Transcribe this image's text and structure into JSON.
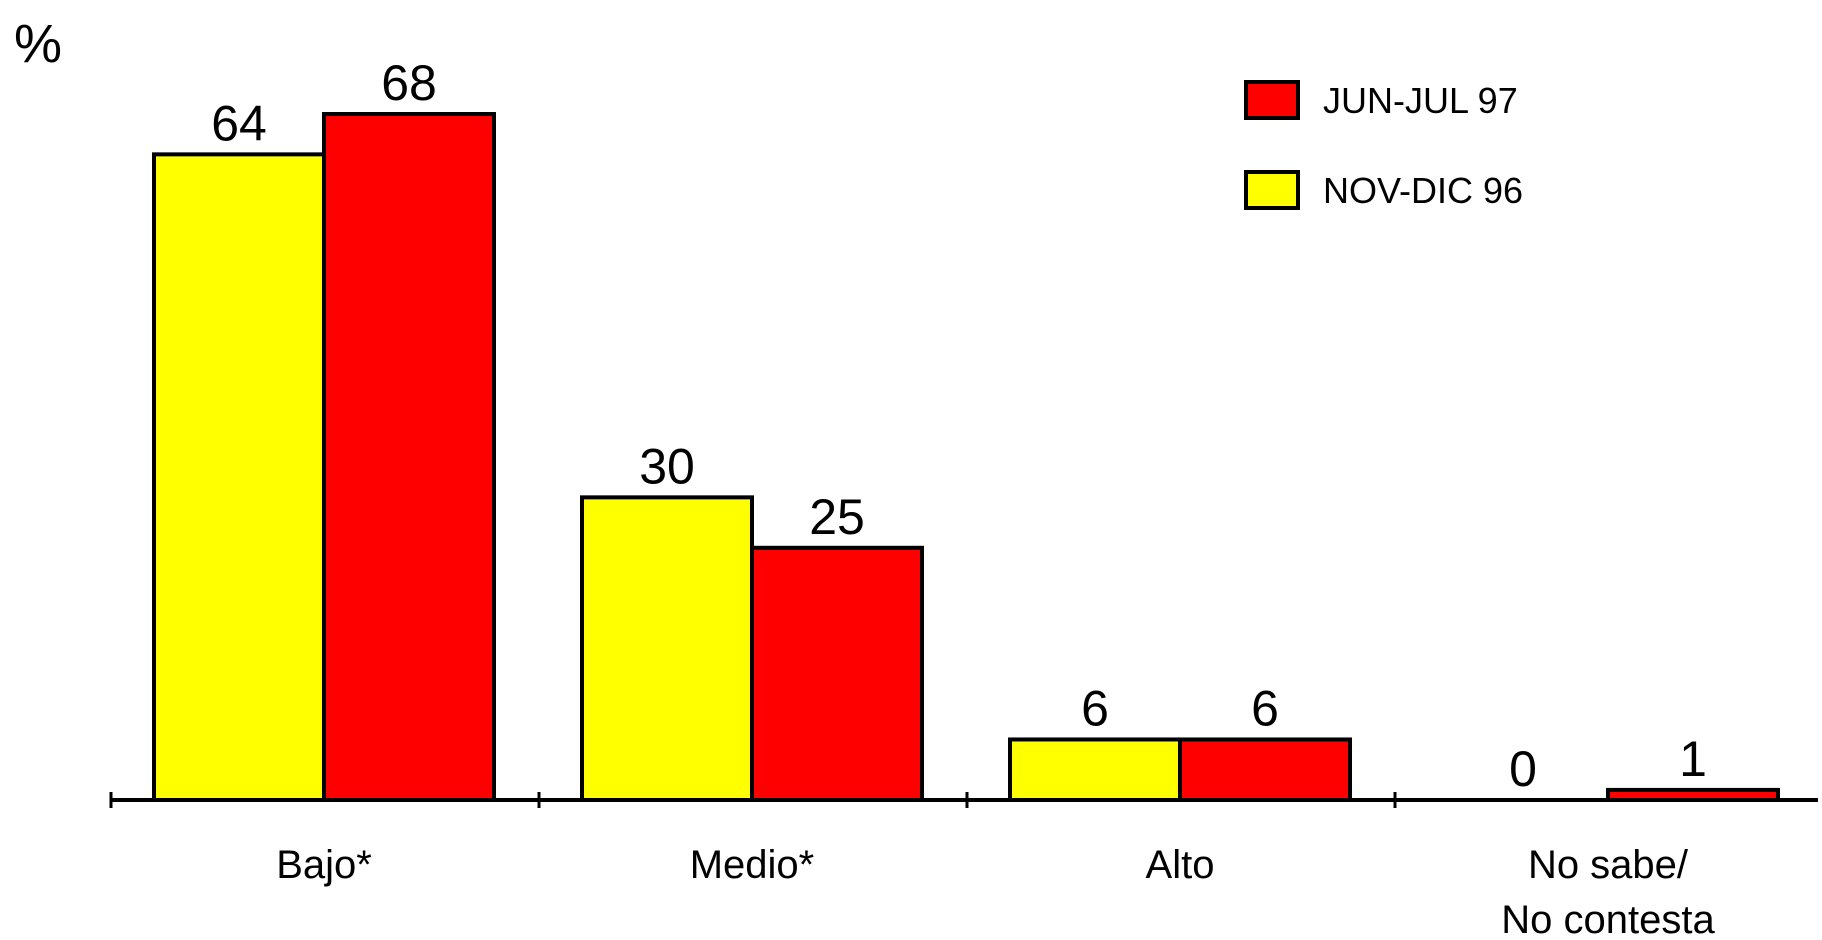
{
  "chart_data": {
    "type": "bar",
    "unit_label": "%",
    "categories": [
      [
        "Bajo*"
      ],
      [
        "Medio*"
      ],
      [
        "Alto"
      ],
      [
        "No sabe/",
        "No contesta"
      ]
    ],
    "series": [
      {
        "name": "NOV-DIC 96",
        "color": "#ffff00",
        "values": [
          64,
          30,
          6,
          0
        ]
      },
      {
        "name": "JUN-JUL 97",
        "color": "#ff0000",
        "values": [
          68,
          25,
          6,
          1
        ]
      }
    ],
    "legend_order": [
      "JUN-JUL 97",
      "NOV-DIC 96"
    ],
    "legend_position": "top-right",
    "ylim": [
      0,
      70
    ],
    "grid": false
  }
}
